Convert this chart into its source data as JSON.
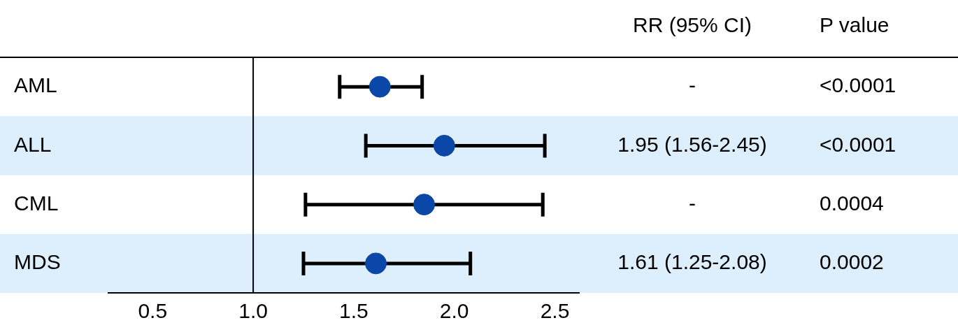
{
  "chart_data": {
    "type": "scatter",
    "orientation": "horizontal",
    "categories": [
      "AML",
      "ALL",
      "CML",
      "MDS"
    ],
    "values": [
      1.63,
      1.95,
      1.85,
      1.61
    ],
    "errors": [
      [
        1.43,
        1.84
      ],
      [
        1.56,
        2.45
      ],
      [
        1.26,
        2.44
      ],
      [
        1.25,
        2.08
      ]
    ],
    "color": "#0b47a6",
    "xlim": [
      0.28,
      2.62
    ],
    "xticks": [
      0.5,
      {
        "value": 1,
        "label": "1.0"
      },
      1.5,
      {
        "value": 2,
        "label": "2.0"
      },
      2.5
    ],
    "ref_lines": [
      {
        "axis": "x",
        "value": 1,
        "color": "#000000"
      }
    ],
    "bands": [
      {
        "axis": "y",
        "from": "ALL",
        "to": "ALL",
        "color": "#ddeefc"
      },
      {
        "axis": "y",
        "from": "MDS",
        "to": "MDS",
        "color": "#ddeefc"
      }
    ],
    "annotations": [
      "RR (95% CI)",
      "P value",
      "-",
      "1.95 (1.56-2.45)",
      "-",
      "1.61 (1.25-2.08)",
      "<0.0001",
      "<0.0001",
      "0.0004",
      "0.0002"
    ],
    "grid": false,
    "legend": false,
    "marker": "circle"
  }
}
